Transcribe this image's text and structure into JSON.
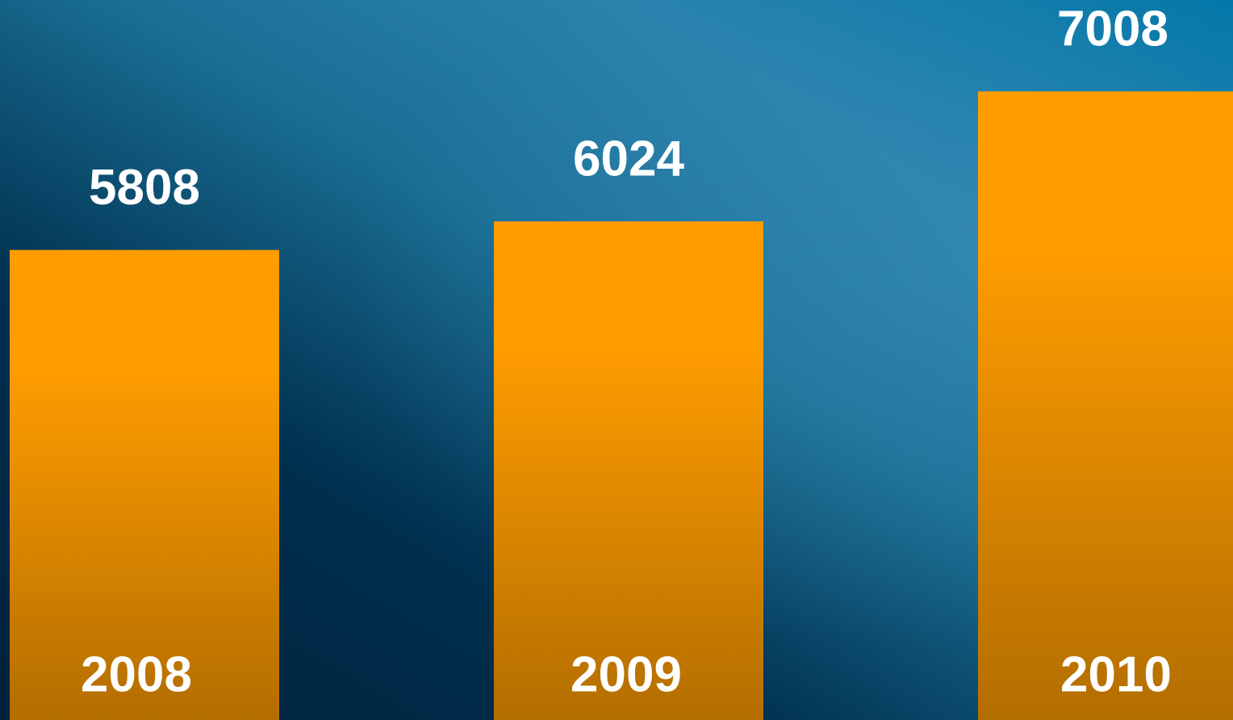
{
  "chart_data": {
    "type": "bar",
    "categories": [
      "2008",
      "2009",
      "2010"
    ],
    "values": [
      5808,
      6024,
      7008
    ],
    "color": "#ff9c00",
    "ylim": [
      2250,
      7700
    ]
  }
}
